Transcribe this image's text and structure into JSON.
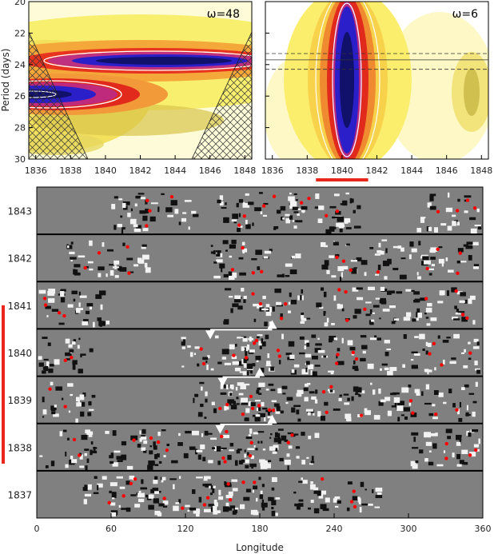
{
  "chart_data": [
    {
      "type": "heatmap",
      "title": "ω=48",
      "ylabel": "Period (days)",
      "xlabel": "",
      "x_ticks": [
        1836,
        1838,
        1840,
        1842,
        1844,
        1846,
        1848
      ],
      "y_ticks": [
        20,
        22,
        24,
        26,
        28,
        30
      ],
      "xlim": [
        1835.6,
        1848.4
      ],
      "ylim": [
        20,
        30
      ],
      "features": [
        {
          "name": "band-upper",
          "period": 23.9,
          "x_range": [
            1837.2,
            1848.4
          ],
          "peak": 1842.5
        },
        {
          "name": "band-lower",
          "period": 25.8,
          "x_range": [
            1835.6,
            1840.5
          ],
          "peak": 1836.6
        }
      ]
    },
    {
      "type": "heatmap",
      "title": "ω=6",
      "xlabel": "",
      "x_ticks": [
        1836,
        1838,
        1840,
        1842,
        1844,
        1846,
        1848
      ],
      "xlim": [
        1835.6,
        1848.4
      ],
      "ylim": [
        20,
        30
      ],
      "features": [
        {
          "name": "peak",
          "period": 24.5,
          "x_center": 1840.1,
          "x_range": [
            1838.6,
            1841.6
          ]
        }
      ],
      "highlight_range": [
        1838.5,
        1841.5
      ],
      "reference_periods": {
        "solid": [
          23.7
        ],
        "dashed": [
          23.3,
          24.3
        ]
      }
    },
    {
      "type": "heatmap",
      "xlabel": "Longitude",
      "x_ticks": [
        0,
        60,
        120,
        180,
        240,
        300,
        360
      ],
      "xlim": [
        0,
        360
      ],
      "rows": [
        "1843",
        "1842",
        "1841",
        "1840",
        "1839",
        "1838",
        "1837"
      ],
      "highlight_rows": [
        "1841",
        "1840",
        "1839",
        "1838"
      ],
      "arrows": [
        {
          "row": "1840",
          "from_lon": 140,
          "to_lon": 190
        },
        {
          "row": "1839",
          "from_lon": 150,
          "to_lon": 180
        },
        {
          "row": "1838",
          "from_lon": 148,
          "to_lon": 190
        }
      ]
    }
  ],
  "colors": {
    "map_background": "#808080",
    "spot_marker": "#ff0000",
    "highlight": "#e8261c",
    "arrow": "#ffffff"
  }
}
